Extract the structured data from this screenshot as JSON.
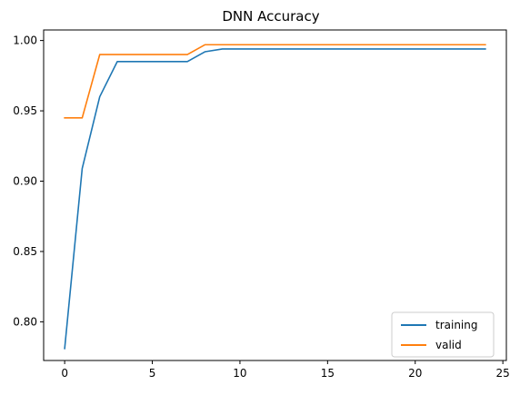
{
  "chart_data": {
    "type": "line",
    "title": "DNN Accuracy",
    "xlabel": "",
    "ylabel": "",
    "xlim": [
      -1.2,
      25.2
    ],
    "ylim": [
      0.7725,
      1.0075
    ],
    "x_ticks": [
      0,
      5,
      10,
      15,
      20,
      25
    ],
    "x_tick_labels": [
      "0",
      "5",
      "10",
      "15",
      "20",
      "25"
    ],
    "y_ticks": [
      0.8,
      0.85,
      0.9,
      0.95,
      1.0
    ],
    "y_tick_labels": [
      "0.80",
      "0.85",
      "0.90",
      "0.95",
      "1.00"
    ],
    "grid": false,
    "legend_position": "lower-right",
    "x": [
      0,
      1,
      2,
      3,
      4,
      5,
      6,
      7,
      8,
      9,
      10,
      11,
      12,
      13,
      14,
      15,
      16,
      17,
      18,
      19,
      20,
      21,
      22,
      23,
      24
    ],
    "series": [
      {
        "name": "training",
        "color": "#1f77b4",
        "values": [
          0.781,
          0.909,
          0.96,
          0.985,
          0.985,
          0.985,
          0.985,
          0.985,
          0.992,
          0.994,
          0.994,
          0.994,
          0.994,
          0.994,
          0.994,
          0.994,
          0.994,
          0.994,
          0.994,
          0.994,
          0.994,
          0.994,
          0.994,
          0.994,
          0.994
        ]
      },
      {
        "name": "valid",
        "color": "#ff7f0e",
        "values": [
          0.945,
          0.945,
          0.99,
          0.99,
          0.99,
          0.99,
          0.99,
          0.99,
          0.997,
          0.997,
          0.997,
          0.997,
          0.997,
          0.997,
          0.997,
          0.997,
          0.997,
          0.997,
          0.997,
          0.997,
          0.997,
          0.997,
          0.997,
          0.997,
          0.997
        ]
      }
    ]
  }
}
